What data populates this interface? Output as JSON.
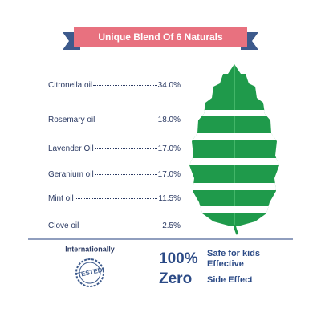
{
  "header": {
    "title": "Unique Blend Of 6 Naturals"
  },
  "ingredients": [
    {
      "name": "Citronella oil",
      "percent": "34.0%"
    },
    {
      "name": "Rosemary oil",
      "percent": "18.0%"
    },
    {
      "name": "Lavender Oil",
      "percent": "17.0%"
    },
    {
      "name": "Geranium oil",
      "percent": "17.0%"
    },
    {
      "name": "Mint oil",
      "percent": "11.5%"
    },
    {
      "name": "Clove oil",
      "percent": "2.5%"
    }
  ],
  "badge": {
    "caption": "Internationally",
    "stamp": "TESTED"
  },
  "claims": [
    {
      "value": "100%",
      "lines": [
        "Safe for kids",
        "Effective"
      ]
    },
    {
      "value": "Zero",
      "lines": [
        "Side Effect"
      ]
    }
  ]
}
